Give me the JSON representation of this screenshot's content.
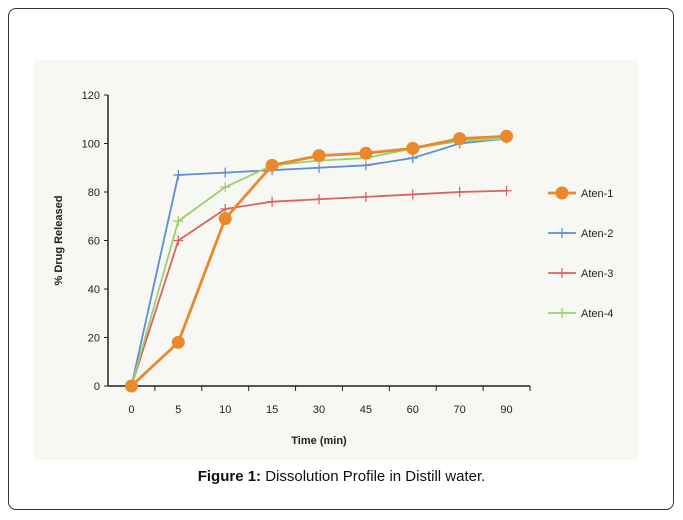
{
  "caption": {
    "label": "Figure 1:",
    "text": "Dissolution Profile in Distill water."
  },
  "chart_data": {
    "type": "line",
    "title": "",
    "xlabel": "Time (min)",
    "ylabel": "% Drug Released",
    "categories": [
      "0",
      "5",
      "10",
      "15",
      "30",
      "45",
      "60",
      "70",
      "90"
    ],
    "ylim": [
      0,
      120
    ],
    "yticks": [
      0,
      20,
      40,
      60,
      80,
      100,
      120
    ],
    "grid": false,
    "legend_position": "right",
    "series": [
      {
        "name": "Aten-1",
        "color": "#e8892b",
        "marker": "circle",
        "values": [
          0,
          18,
          69,
          91,
          95,
          96,
          98,
          102,
          103
        ]
      },
      {
        "name": "Aten-2",
        "color": "#5b8fd6",
        "marker": "plus",
        "values": [
          0,
          87,
          88,
          89,
          90,
          91,
          94,
          100,
          102
        ]
      },
      {
        "name": "Aten-3",
        "color": "#d9645e",
        "marker": "plus",
        "values": [
          0,
          60,
          73,
          76,
          77,
          78,
          79,
          80,
          80.5
        ]
      },
      {
        "name": "Aten-4",
        "color": "#9fce6e",
        "marker": "plus",
        "values": [
          0,
          68,
          82,
          91,
          93,
          94,
          98,
          101,
          102
        ]
      }
    ]
  }
}
